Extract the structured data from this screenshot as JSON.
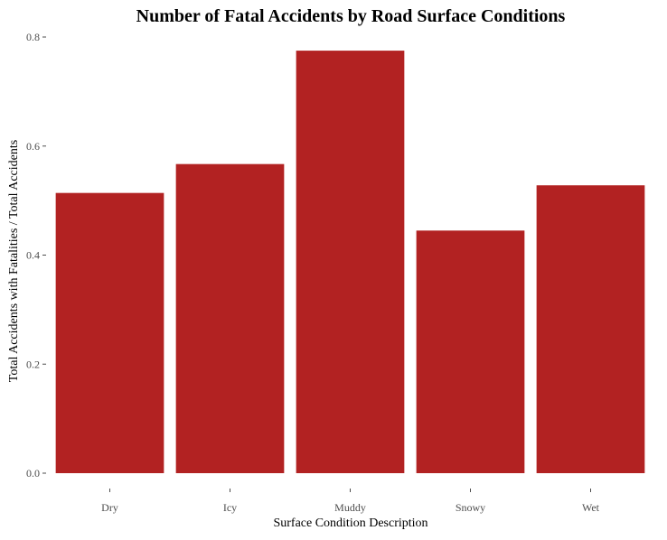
{
  "chart_data": {
    "type": "bar",
    "title": "Number of Fatal Accidents by Road Surface Conditions",
    "xlabel": "Surface Condition Description",
    "ylabel": "Total Accidents with Fatalities / Total Accidents",
    "categories": [
      "Dry",
      "Icy",
      "Muddy",
      "Snowy",
      "Wet"
    ],
    "values": [
      0.514,
      0.567,
      0.775,
      0.445,
      0.528
    ],
    "ylim": [
      0,
      0.8
    ],
    "yticks": [
      0.0,
      0.2,
      0.4,
      0.6,
      0.8
    ],
    "ytick_labels": [
      "0.0",
      "0.2",
      "0.4",
      "0.6",
      "0.8"
    ],
    "bar_color": "#b22222",
    "grid": false,
    "legend": "none"
  }
}
